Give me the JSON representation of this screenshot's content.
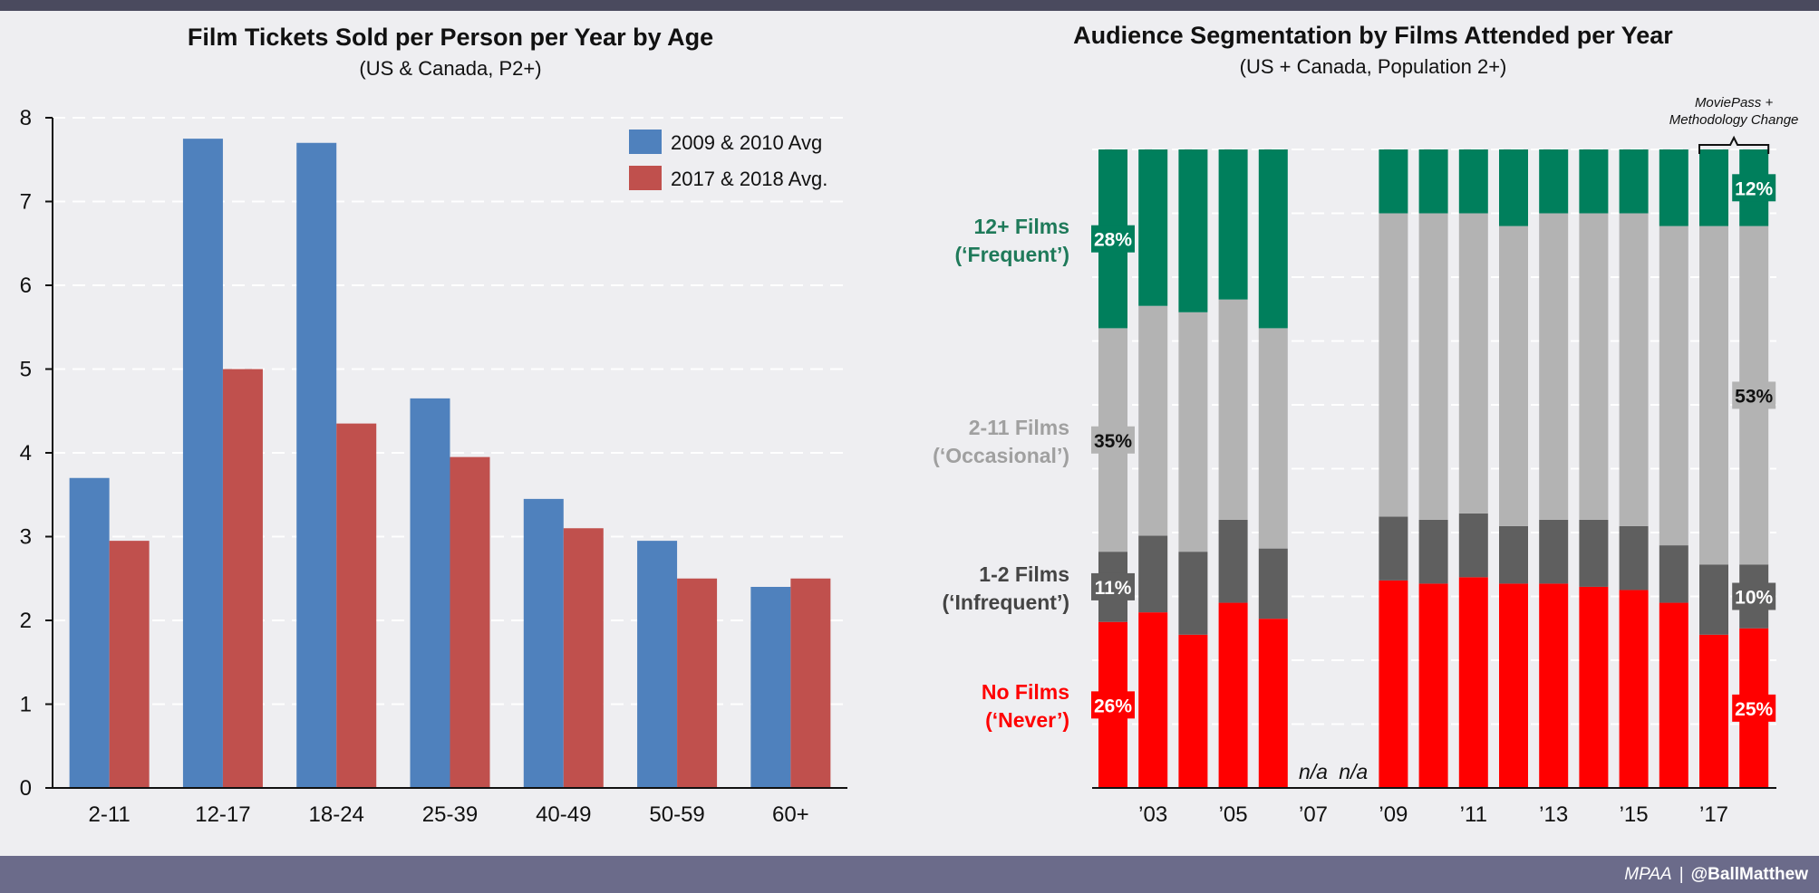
{
  "colors": {
    "background": "#eeeef1",
    "top_bar": "#4a4a5e",
    "footer": "#6b6b8a",
    "blue": "#4f81bd",
    "red_bar": "#c0504d",
    "frequent": "#007f5c",
    "occasional": "#b3b3b3",
    "infrequent": "#5f5f5f",
    "never": "#ff0000"
  },
  "footer": {
    "source": "MPAA",
    "separator": "|",
    "handle": "@BallMatthew"
  },
  "chart_data": [
    {
      "type": "bar",
      "title": "Film Tickets Sold per Person per Year by Age",
      "subtitle": "(US & Canada, P2+)",
      "xlabel": "",
      "ylabel": "",
      "categories": [
        "2-11",
        "12-17",
        "18-24",
        "25-39",
        "40-49",
        "50-59",
        "60+"
      ],
      "yticks": [
        "0",
        "1",
        "2",
        "3",
        "4",
        "5",
        "6",
        "7",
        "8"
      ],
      "ylim": [
        0,
        8
      ],
      "legend_position": "top-right",
      "series": [
        {
          "name": "2009 & 2010 Avg",
          "color": "#4f81bd",
          "values": [
            3.7,
            7.75,
            7.7,
            4.65,
            3.45,
            2.95,
            2.4
          ]
        },
        {
          "name": "2017 & 2018 Avg.",
          "color": "#c0504d",
          "values": [
            2.95,
            5.0,
            4.35,
            3.95,
            3.1,
            2.5,
            2.5
          ]
        }
      ]
    },
    {
      "type": "bar",
      "stacked": true,
      "title": "Audience Segmentation by Films Attended per Year",
      "subtitle": "(US + Canada, Population 2+)",
      "years": [
        "2002",
        "2003",
        "2004",
        "2005",
        "2006",
        "2007",
        "2008",
        "2009",
        "2010",
        "2011",
        "2012",
        "2013",
        "2014",
        "2015",
        "2016",
        "2017",
        "2018"
      ],
      "xtick_labels": [
        {
          "year": "2003",
          "label": "’03"
        },
        {
          "year": "2005",
          "label": "’05"
        },
        {
          "year": "2007",
          "label": "’07"
        },
        {
          "year": "2009",
          "label": "’09"
        },
        {
          "year": "2011",
          "label": "’11"
        },
        {
          "year": "2013",
          "label": "’13"
        },
        {
          "year": "2015",
          "label": "’15"
        },
        {
          "year": "2017",
          "label": "’17"
        }
      ],
      "missing": [
        {
          "year": "2007",
          "label": "n/a"
        },
        {
          "year": "2008",
          "label": "n/a"
        }
      ],
      "ylim": [
        0,
        100
      ],
      "series": [
        {
          "key": "never",
          "name_line1": "No Films",
          "name_line2": "(‘Never’)",
          "color": "#ff0000",
          "values": [
            26,
            27.5,
            24,
            29,
            26.5,
            null,
            null,
            32.5,
            32,
            33,
            32,
            32,
            31.5,
            31,
            29,
            24,
            25
          ]
        },
        {
          "key": "infrequent",
          "name_line1": "1-2 Films",
          "name_line2": "(‘Infrequent’)",
          "color": "#5f5f5f",
          "values": [
            11,
            12,
            13,
            13,
            11,
            null,
            null,
            10,
            10,
            10,
            9,
            10,
            10.5,
            10,
            9,
            11,
            10
          ]
        },
        {
          "key": "occasional",
          "name_line1": "2-11 Films",
          "name_line2": "(‘Occasional’)",
          "color": "#b3b3b3",
          "values": [
            35,
            36,
            37.5,
            34.5,
            34.5,
            null,
            null,
            47.5,
            48,
            47,
            47,
            48,
            48,
            49,
            50,
            53,
            53
          ]
        },
        {
          "key": "frequent",
          "name_line1": "12+ Films",
          "name_line2": "(‘Frequent’)",
          "color": "#007f5c",
          "values": [
            28,
            24.5,
            25.5,
            23.5,
            28,
            null,
            null,
            10,
            10,
            10,
            12,
            10,
            10,
            10,
            12,
            12,
            12
          ]
        }
      ],
      "data_labels": [
        {
          "year": "2002",
          "series": "frequent",
          "text": "28%"
        },
        {
          "year": "2002",
          "series": "occasional",
          "text": "35%"
        },
        {
          "year": "2002",
          "series": "infrequent",
          "text": "11%"
        },
        {
          "year": "2002",
          "series": "never",
          "text": "26%"
        },
        {
          "year": "2018",
          "series": "frequent",
          "text": "12%"
        },
        {
          "year": "2018",
          "series": "occasional",
          "text": "53%"
        },
        {
          "year": "2018",
          "series": "infrequent",
          "text": "10%"
        },
        {
          "year": "2018",
          "series": "never",
          "text": "25%"
        }
      ],
      "annotation": {
        "line1": "MoviePass +",
        "line2": "Methodology Change",
        "years": [
          "2017",
          "2018"
        ]
      }
    }
  ]
}
